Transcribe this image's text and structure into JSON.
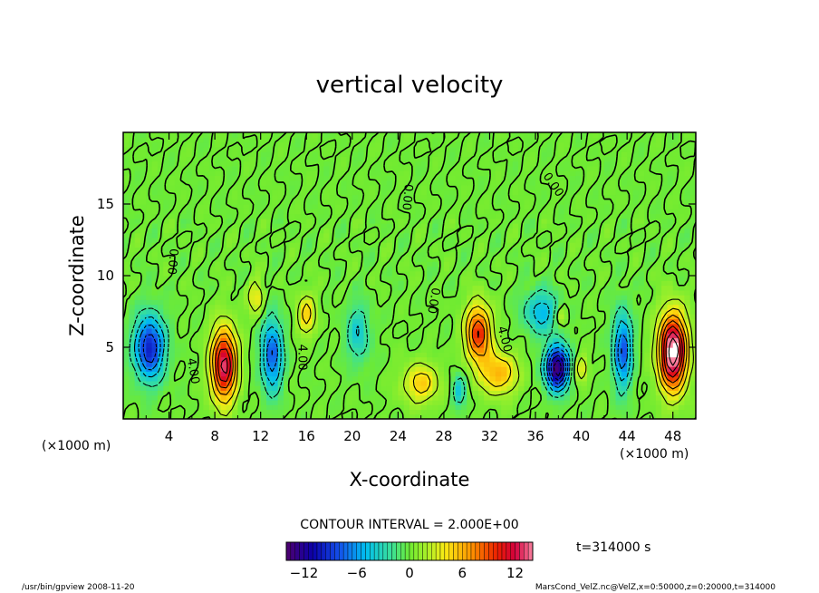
{
  "chart_data": {
    "type": "heatmap",
    "title": "vertical velocity",
    "xlabel": "X-coordinate",
    "ylabel": "Z-coordinate",
    "x_unit": "(×1000 m)",
    "y_unit": "(×1000 m)",
    "xlim": [
      0,
      50
    ],
    "ylim": [
      0,
      20
    ],
    "x_ticks": [
      4,
      8,
      12,
      16,
      20,
      24,
      28,
      32,
      36,
      40,
      44,
      48
    ],
    "y_ticks": [
      5,
      10,
      15
    ],
    "contour_interval": "CONTOUR INTERVAL = 2.000E+00",
    "time_label": "t=314000 s",
    "colorbar": {
      "range": [
        -14,
        14
      ],
      "ticks": [
        -12,
        -6,
        0,
        6,
        12
      ],
      "tick_labels": [
        "−12",
        "−6",
        "0",
        "6",
        "12"
      ]
    },
    "contour_labels": [
      {
        "text": "4.00",
        "x": 5.8,
        "z": 3.3,
        "rotate": 80
      },
      {
        "text": "4.00",
        "x": 15.3,
        "z": 4.3,
        "rotate": 90
      },
      {
        "text": "4.00",
        "x": 33.0,
        "z": 5.5,
        "rotate": 75
      },
      {
        "text": "0.00",
        "x": 4.0,
        "z": 11.0,
        "rotate": 95
      },
      {
        "text": "0.00",
        "x": 26.8,
        "z": 8.3,
        "rotate": 100
      },
      {
        "text": "0.00",
        "x": 24.5,
        "z": 15.5,
        "rotate": 95
      },
      {
        "text": "0.00",
        "x": 37.3,
        "z": 16.2,
        "rotate": 55
      }
    ],
    "features": [
      {
        "type": "updraft",
        "x": 8.8,
        "z": 3.8,
        "sx": 1.1,
        "sz": 2.5,
        "peak": 13
      },
      {
        "type": "updraft",
        "x": 48.0,
        "z": 4.7,
        "sx": 1.2,
        "sz": 2.6,
        "peak": 16
      },
      {
        "type": "updraft",
        "x": 31.0,
        "z": 6.0,
        "sx": 1.1,
        "sz": 2.0,
        "peak": 10
      },
      {
        "type": "updraft",
        "x": 32.8,
        "z": 3.2,
        "sx": 1.6,
        "sz": 1.5,
        "peak": 6
      },
      {
        "type": "updraft",
        "x": 26.0,
        "z": 2.5,
        "sx": 1.6,
        "sz": 1.4,
        "peak": 5
      },
      {
        "type": "updraft",
        "x": 16.0,
        "z": 7.3,
        "sx": 0.8,
        "sz": 1.4,
        "peak": 5
      },
      {
        "type": "updraft",
        "x": 11.6,
        "z": 8.5,
        "sx": 0.7,
        "sz": 1.2,
        "peak": 4
      },
      {
        "type": "updraft",
        "x": 40.0,
        "z": 3.5,
        "sx": 0.6,
        "sz": 0.9,
        "peak": 4
      },
      {
        "type": "updraft",
        "x": 38.3,
        "z": 7.2,
        "sx": 0.5,
        "sz": 0.7,
        "peak": 3
      },
      {
        "type": "downdraft",
        "x": 2.3,
        "z": 5.0,
        "sx": 1.3,
        "sz": 2.2,
        "peak": -10
      },
      {
        "type": "downdraft",
        "x": 13.0,
        "z": 4.5,
        "sx": 0.9,
        "sz": 2.5,
        "peak": -8
      },
      {
        "type": "downdraft",
        "x": 37.9,
        "z": 3.6,
        "sx": 1.0,
        "sz": 1.5,
        "peak": -14
      },
      {
        "type": "downdraft",
        "x": 43.6,
        "z": 4.8,
        "sx": 0.8,
        "sz": 2.6,
        "peak": -8
      },
      {
        "type": "downdraft",
        "x": 20.5,
        "z": 6.0,
        "sx": 1.0,
        "sz": 2.0,
        "peak": -4
      },
      {
        "type": "downdraft",
        "x": 36.5,
        "z": 7.5,
        "sx": 1.5,
        "sz": 1.5,
        "peak": -5
      },
      {
        "type": "downdraft",
        "x": 29.3,
        "z": 2.0,
        "sx": 0.6,
        "sz": 1.2,
        "peak": -4
      }
    ]
  },
  "footer": {
    "left": "/usr/bin/gpview  2008-11-20",
    "right": "MarsCond_VelZ.nc@VelZ,x=0:50000,z=0:20000,t=314000"
  }
}
